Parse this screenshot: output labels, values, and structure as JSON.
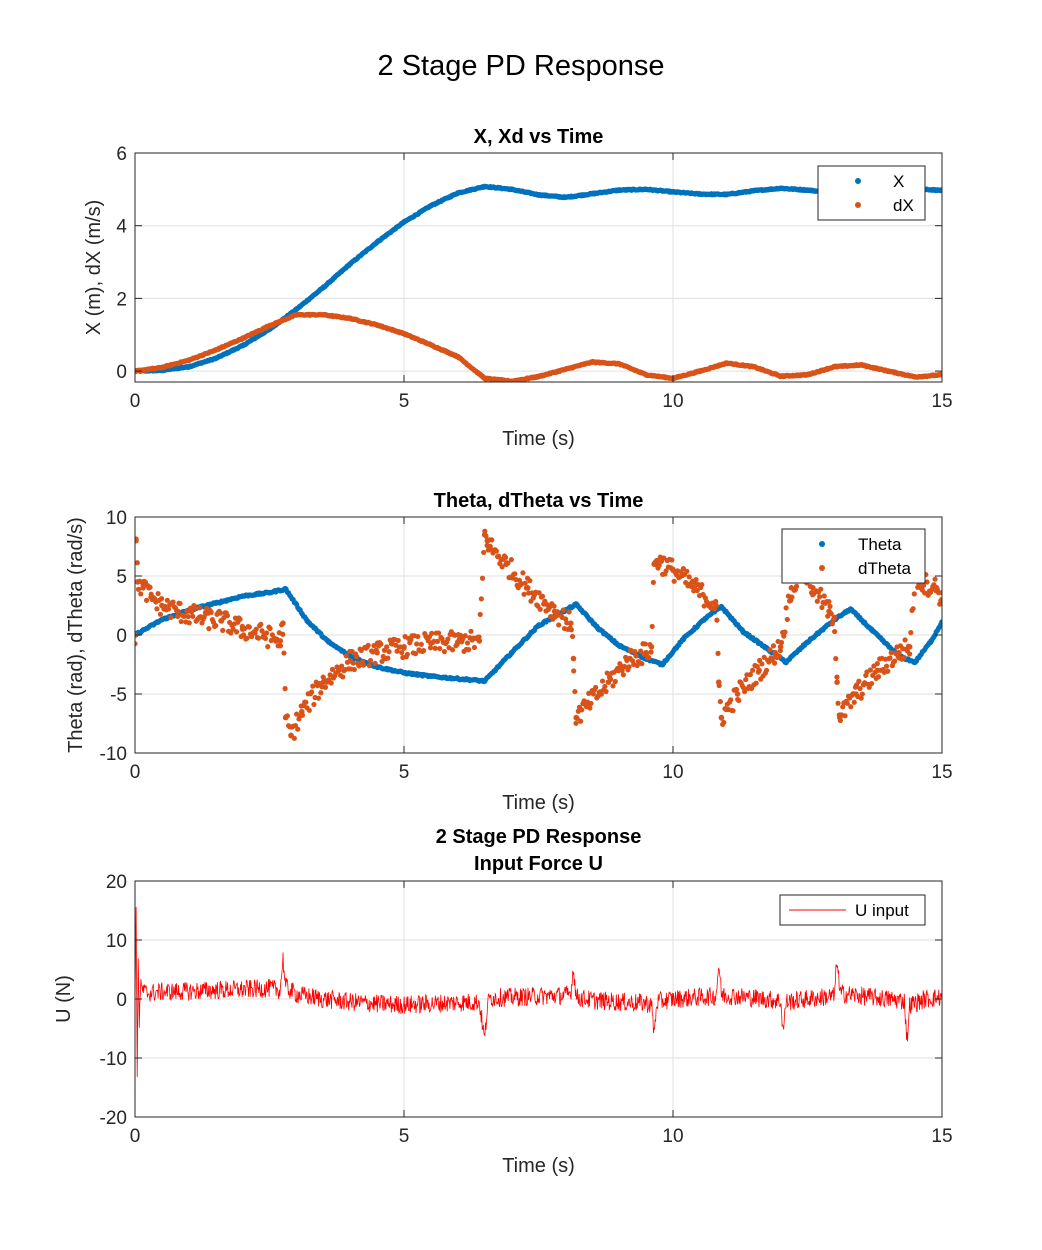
{
  "figure": {
    "suptitle": "2 Stage PD Response",
    "colors": {
      "blue": "#0072BD",
      "orange": "#D95319",
      "red": "#FF0000",
      "grid": "#DFDFDF",
      "axis": "#262626"
    }
  },
  "chart_data": [
    {
      "type": "scatter",
      "title": "X, Xd vs Time",
      "xlabel": "Time (s)",
      "ylabel": "X (m), dX (m/s)",
      "xlim": [
        0,
        15
      ],
      "ylim": [
        -0.3,
        6
      ],
      "xticks": [
        0,
        5,
        10,
        15
      ],
      "yticks": [
        0,
        2,
        4,
        6
      ],
      "grid": true,
      "legend": "top-right",
      "series": [
        {
          "name": "X",
          "color": "#0072BD",
          "x": [
            0,
            0.5,
            1,
            1.5,
            2,
            2.5,
            3,
            3.5,
            4,
            4.5,
            5,
            5.5,
            6,
            6.5,
            7,
            7.5,
            8,
            8.5,
            9,
            9.5,
            10,
            10.5,
            11,
            11.5,
            12,
            12.5,
            13,
            13.5,
            14,
            14.5,
            15
          ],
          "y": [
            0,
            0.02,
            0.12,
            0.35,
            0.7,
            1.15,
            1.7,
            2.3,
            2.95,
            3.55,
            4.1,
            4.55,
            4.9,
            5.08,
            5.0,
            4.85,
            4.78,
            4.88,
            4.98,
            5.0,
            4.93,
            4.87,
            4.86,
            4.96,
            5.03,
            4.98,
            4.9,
            4.92,
            5.0,
            5.02,
            4.97
          ]
        },
        {
          "name": "dX",
          "color": "#D95319",
          "x": [
            0,
            0.5,
            1,
            1.5,
            2,
            2.5,
            3,
            3.5,
            4,
            4.5,
            5,
            5.5,
            6,
            6.5,
            7,
            7.5,
            8,
            8.5,
            9,
            9.5,
            10,
            10.5,
            11,
            11.5,
            12,
            12.5,
            13,
            13.5,
            14,
            14.5,
            15
          ],
          "y": [
            0,
            0.1,
            0.3,
            0.58,
            0.9,
            1.25,
            1.55,
            1.55,
            1.45,
            1.27,
            1.03,
            0.72,
            0.4,
            -0.2,
            -0.28,
            -0.15,
            0.05,
            0.25,
            0.2,
            -0.1,
            -0.2,
            0.0,
            0.22,
            0.12,
            -0.14,
            -0.1,
            0.12,
            0.17,
            0.0,
            -0.16,
            -0.1
          ]
        }
      ]
    },
    {
      "type": "scatter",
      "title": "Theta, dTheta vs Time",
      "xlabel": "Time (s)",
      "ylabel": "Theta (rad), dTheta (rad/s)",
      "xlim": [
        0,
        15
      ],
      "ylim": [
        -10,
        10
      ],
      "xticks": [
        0,
        5,
        10,
        15
      ],
      "yticks": [
        -10,
        -5,
        0,
        5,
        10
      ],
      "grid": true,
      "legend": "top-right",
      "series": [
        {
          "name": "Theta",
          "color": "#0072BD",
          "x": [
            0,
            0.5,
            1,
            1.5,
            2,
            2.5,
            2.8,
            3.2,
            3.6,
            4,
            4.5,
            5,
            5.5,
            6,
            6.5,
            7,
            7.5,
            8.2,
            8.6,
            9,
            9.5,
            9.8,
            10.2,
            10.6,
            10.9,
            11.3,
            11.7,
            12.1,
            12.5,
            13,
            13.3,
            13.7,
            14.2,
            14.5,
            14.8,
            15
          ],
          "y": [
            0,
            1.3,
            2.1,
            2.7,
            3.3,
            3.6,
            3.9,
            1.2,
            -0.6,
            -1.8,
            -2.7,
            -3.2,
            -3.5,
            -3.7,
            -3.9,
            -1.5,
            0.8,
            2.6,
            0.6,
            -0.9,
            -2.0,
            -2.5,
            -0.3,
            1.4,
            2.4,
            0.3,
            -1.0,
            -2.3,
            -0.6,
            1.3,
            2.2,
            0.4,
            -1.8,
            -2.3,
            -0.5,
            1.1
          ]
        },
        {
          "name": "dTheta",
          "color": "#D95319",
          "x": [
            0,
            0.02,
            0.05,
            0.15,
            0.3,
            0.5,
            0.8,
            1.2,
            1.6,
            2,
            2.4,
            2.7,
            2.75,
            2.8,
            2.9,
            3.1,
            3.5,
            4,
            4.5,
            5,
            5.5,
            6,
            6.4,
            6.5,
            6.55,
            6.6,
            6.9,
            7.3,
            7.8,
            8.1,
            8.15,
            8.2,
            8.4,
            8.8,
            9.2,
            9.5,
            9.6,
            9.65,
            9.7,
            10,
            10.4,
            10.8,
            10.85,
            10.9,
            11.2,
            11.6,
            11.9,
            12,
            12.2,
            12.4,
            12.6,
            12.9,
            13.0,
            13.05,
            13.1,
            13.4,
            13.8,
            14.2,
            14.4,
            14.5,
            14.6,
            14.9,
            15
          ],
          "y": [
            0,
            8,
            4.5,
            4,
            3.2,
            2.5,
            2,
            1.5,
            1.2,
            0.5,
            0,
            -0.5,
            1,
            -7,
            -8.5,
            -6.5,
            -4,
            -2.2,
            -1.5,
            -1,
            -0.7,
            -0.6,
            -0.5,
            8.5,
            8,
            7.5,
            6,
            4,
            2,
            1,
            -2,
            -7,
            -6,
            -4,
            -2,
            -1.5,
            -1,
            6,
            6.3,
            5.5,
            4,
            2.5,
            -4,
            -7,
            -5,
            -3,
            -1.5,
            -1,
            4,
            5.5,
            4,
            2,
            1.5,
            -4,
            -7,
            -5,
            -3,
            -1.5,
            -1,
            5,
            4.5,
            4,
            3
          ]
        }
      ]
    },
    {
      "type": "line",
      "title": "2 Stage PD Response",
      "subtitle": "Input Force U",
      "xlabel": "Time (s)",
      "ylabel": "U (N)",
      "xlim": [
        0,
        15
      ],
      "ylim": [
        -20,
        20
      ],
      "xticks": [
        0,
        5,
        10,
        15
      ],
      "yticks": [
        -20,
        -10,
        0,
        10,
        20
      ],
      "grid": true,
      "legend": "top-right",
      "series": [
        {
          "name": "U input",
          "color": "#FF0000",
          "x": [
            0,
            0.02,
            0.04,
            0.06,
            0.08,
            0.1,
            0.2,
            0.5,
            1,
            1.5,
            2,
            2.5,
            2.7,
            2.75,
            2.8,
            3,
            3.5,
            4,
            4.5,
            5,
            5.5,
            6,
            6.4,
            6.5,
            6.55,
            6.6,
            7,
            7.5,
            8,
            8.1,
            8.15,
            8.2,
            8.5,
            9,
            9.5,
            9.6,
            9.65,
            9.7,
            10,
            10.5,
            10.8,
            10.85,
            10.9,
            11.5,
            12,
            12.05,
            12.1,
            12.5,
            13,
            13.05,
            13.1,
            13.5,
            14,
            14.3,
            14.35,
            14.4,
            14.7,
            15
          ],
          "y": [
            0,
            15,
            -13,
            8,
            -5,
            2,
            1,
            1.2,
            1.3,
            1.5,
            1.6,
            1.8,
            1.5,
            7,
            2,
            0.8,
            0,
            -0.5,
            -0.8,
            -1,
            -0.8,
            -0.6,
            -0.5,
            -7,
            -1,
            0.2,
            0.3,
            0.5,
            0.6,
            1,
            5.5,
            0.3,
            -0.2,
            -0.5,
            -0.7,
            -1,
            -6,
            -0.5,
            0,
            0.3,
            0.5,
            6,
            0.7,
            0.2,
            -0.3,
            -5.5,
            -0.5,
            0,
            0.5,
            7,
            1,
            0.5,
            0,
            -0.3,
            -7,
            -1,
            0,
            0.3
          ]
        }
      ]
    }
  ]
}
